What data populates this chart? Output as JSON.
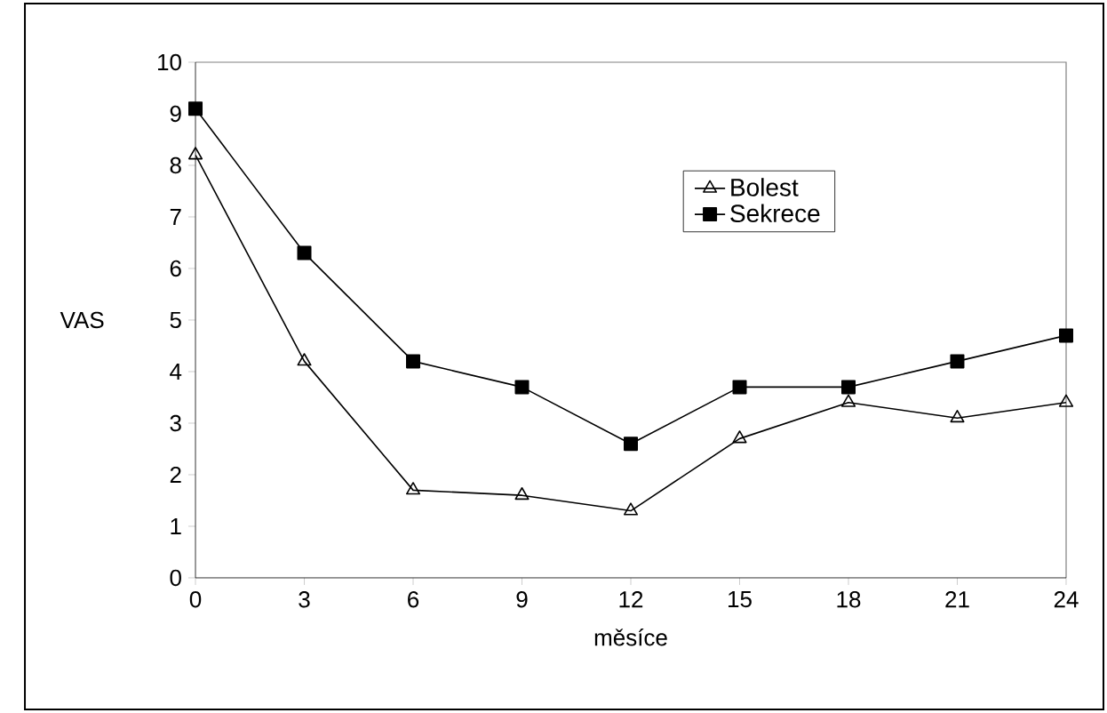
{
  "chart_data": {
    "type": "line",
    "xlabel": "měsíce",
    "ylabel": "VAS",
    "x": [
      0,
      3,
      6,
      9,
      12,
      15,
      18,
      21,
      24
    ],
    "series": [
      {
        "name": "Bolest",
        "color": "#000000",
        "marker": "triangle",
        "values": [
          8.2,
          4.2,
          1.7,
          1.6,
          1.3,
          2.7,
          3.4,
          3.1,
          3.4
        ]
      },
      {
        "name": "Sekrece",
        "color": "#000000",
        "marker": "square",
        "values": [
          9.1,
          6.3,
          4.2,
          3.7,
          2.6,
          3.7,
          3.7,
          4.2,
          4.7
        ]
      }
    ],
    "xlim": [
      0,
      24
    ],
    "xticks": [
      0,
      3,
      6,
      9,
      12,
      15,
      18,
      21,
      24
    ],
    "ylim": [
      0,
      10
    ],
    "yticks": [
      0,
      1,
      2,
      3,
      4,
      5,
      6,
      7,
      8,
      9,
      10
    ],
    "grid": false,
    "legend": "top right",
    "line_style": "solid"
  }
}
